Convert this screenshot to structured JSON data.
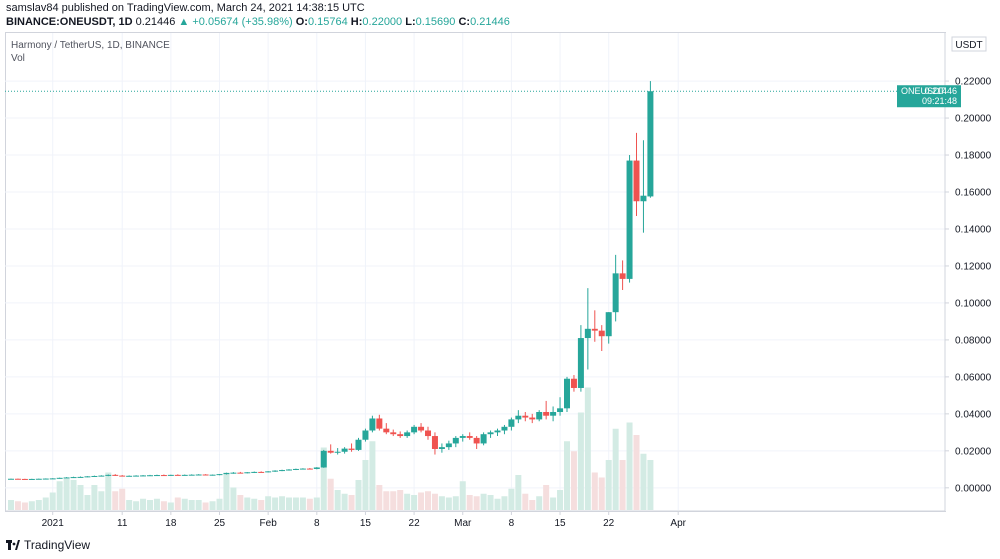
{
  "header": {
    "published_by": "samslav84 published on TradingView.com, March 24, 2021 14:38:15 UTC",
    "symbol": "BINANCE:ONEUSDT, 1D",
    "last": "0.21446",
    "change": "+0.05674 (+35.98%)",
    "open_label": "O:",
    "open": "0.15764",
    "high_label": "H:",
    "high": "0.22000",
    "low_label": "L:",
    "low": "0.15690",
    "close_label": "C:",
    "close": "0.21446"
  },
  "panel": {
    "title": "Harmony / TetherUS, 1D, BINANCE",
    "volume_label": "Vol"
  },
  "price_axis": {
    "currency": "USDT"
  },
  "last_price_tag": {
    "symbol": "ONEUSDT",
    "price": "0.21446",
    "countdown": "09:21:48"
  },
  "footer": {
    "brand": "TradingView"
  },
  "colors": {
    "up": "#26a69a",
    "down": "#ef5350",
    "up_volume": "#d3ebe4",
    "down_volume": "#f5dede",
    "tag": "#26a69a",
    "grid": "#f0f3fa"
  },
  "chart_data": {
    "type": "candlestick",
    "title": "Harmony / TetherUS, 1D, BINANCE",
    "ylim": [
      -0.012,
      0.246
    ],
    "y_ticks": [
      "0.22000",
      "0.20000",
      "0.18000",
      "0.16000",
      "0.14000",
      "0.12000",
      "0.10000",
      "0.08000",
      "0.06000",
      "0.04000",
      "0.02000",
      "0.00000"
    ],
    "y_tick_values": [
      0.22,
      0.2,
      0.18,
      0.16,
      0.14,
      0.12,
      0.1,
      0.08,
      0.06,
      0.04,
      0.02,
      0.0
    ],
    "x_ticks": [
      {
        "label": "2021",
        "index": 6
      },
      {
        "label": "11",
        "index": 16
      },
      {
        "label": "18",
        "index": 23
      },
      {
        "label": "25",
        "index": 30
      },
      {
        "label": "Feb",
        "index": 37
      },
      {
        "label": "8",
        "index": 44
      },
      {
        "label": "15",
        "index": 51
      },
      {
        "label": "22",
        "index": 58
      },
      {
        "label": "Mar",
        "index": 65
      },
      {
        "label": "8",
        "index": 72
      },
      {
        "label": "15",
        "index": 79
      },
      {
        "label": "22",
        "index": 86
      },
      {
        "label": "Apr",
        "index": 96
      }
    ],
    "first_index": 0,
    "candles": [
      [
        0.0048,
        0.005,
        0.0046,
        0.0049,
        0.8
      ],
      [
        0.0049,
        0.005,
        0.0047,
        0.0048,
        0.7
      ],
      [
        0.0048,
        0.0049,
        0.0046,
        0.0047,
        0.6
      ],
      [
        0.0047,
        0.0049,
        0.0045,
        0.0048,
        0.7
      ],
      [
        0.0048,
        0.005,
        0.0046,
        0.0049,
        0.8
      ],
      [
        0.0049,
        0.0051,
        0.0047,
        0.005,
        1.0
      ],
      [
        0.005,
        0.0052,
        0.0048,
        0.0051,
        1.4
      ],
      [
        0.0051,
        0.0055,
        0.0049,
        0.0054,
        2.3
      ],
      [
        0.0054,
        0.0058,
        0.0052,
        0.0056,
        2.5
      ],
      [
        0.0056,
        0.006,
        0.0053,
        0.0058,
        2.4
      ],
      [
        0.0058,
        0.0061,
        0.0055,
        0.0059,
        2.0
      ],
      [
        0.0059,
        0.0063,
        0.0057,
        0.0062,
        1.2
      ],
      [
        0.0062,
        0.0066,
        0.0059,
        0.0064,
        2.0
      ],
      [
        0.0064,
        0.0068,
        0.0061,
        0.0066,
        1.5
      ],
      [
        0.0066,
        0.0072,
        0.0063,
        0.007,
        3.0
      ],
      [
        0.007,
        0.0074,
        0.0064,
        0.0066,
        1.5
      ],
      [
        0.0066,
        0.0069,
        0.0062,
        0.0064,
        1.7
      ],
      [
        0.0064,
        0.0067,
        0.0061,
        0.0065,
        0.8
      ],
      [
        0.0065,
        0.0068,
        0.0062,
        0.0066,
        0.7
      ],
      [
        0.0066,
        0.0069,
        0.0063,
        0.0067,
        0.9
      ],
      [
        0.0067,
        0.007,
        0.0064,
        0.0068,
        0.8
      ],
      [
        0.0068,
        0.0071,
        0.0065,
        0.0069,
        0.9
      ],
      [
        0.0069,
        0.0072,
        0.0066,
        0.0068,
        0.7
      ],
      [
        0.0068,
        0.0071,
        0.0065,
        0.007,
        0.6
      ],
      [
        0.007,
        0.0073,
        0.0067,
        0.0069,
        1.0
      ],
      [
        0.0069,
        0.0072,
        0.0066,
        0.007,
        0.9
      ],
      [
        0.007,
        0.0073,
        0.0067,
        0.0071,
        0.8
      ],
      [
        0.0071,
        0.0074,
        0.0068,
        0.0072,
        0.8
      ],
      [
        0.0072,
        0.0074,
        0.0068,
        0.0069,
        0.6
      ],
      [
        0.0069,
        0.0072,
        0.0066,
        0.0071,
        0.7
      ],
      [
        0.0071,
        0.0075,
        0.0068,
        0.0074,
        0.9
      ],
      [
        0.0074,
        0.0082,
        0.0072,
        0.008,
        3.0
      ],
      [
        0.008,
        0.0085,
        0.0076,
        0.0082,
        1.8
      ],
      [
        0.0082,
        0.0086,
        0.0078,
        0.0081,
        1.2
      ],
      [
        0.0081,
        0.0085,
        0.0078,
        0.0084,
        1.0
      ],
      [
        0.0084,
        0.0088,
        0.008,
        0.0086,
        0.9
      ],
      [
        0.0086,
        0.0089,
        0.0082,
        0.0085,
        0.8
      ],
      [
        0.0085,
        0.009,
        0.0083,
        0.0089,
        1.1
      ],
      [
        0.0089,
        0.0095,
        0.0086,
        0.0093,
        1.0
      ],
      [
        0.0093,
        0.0098,
        0.009,
        0.0096,
        1.1
      ],
      [
        0.0096,
        0.0101,
        0.0093,
        0.0099,
        1.0
      ],
      [
        0.0099,
        0.0104,
        0.0096,
        0.0102,
        1.0
      ],
      [
        0.0102,
        0.0106,
        0.0099,
        0.0104,
        1.0
      ],
      [
        0.0104,
        0.0107,
        0.0099,
        0.0102,
        0.9
      ],
      [
        0.0102,
        0.0112,
        0.01,
        0.011,
        1.0
      ],
      [
        0.011,
        0.0205,
        0.0108,
        0.02,
        5.0
      ],
      [
        0.02,
        0.0235,
        0.0185,
        0.019,
        2.5
      ],
      [
        0.019,
        0.0215,
        0.018,
        0.0195,
        1.6
      ],
      [
        0.0195,
        0.022,
        0.0185,
        0.0212,
        1.3
      ],
      [
        0.0212,
        0.024,
        0.0195,
        0.0205,
        1.2
      ],
      [
        0.0205,
        0.027,
        0.02,
        0.026,
        2.4
      ],
      [
        0.026,
        0.032,
        0.025,
        0.031,
        4.0
      ],
      [
        0.031,
        0.039,
        0.03,
        0.0375,
        5.5
      ],
      [
        0.0375,
        0.0395,
        0.031,
        0.032,
        2.0
      ],
      [
        0.032,
        0.035,
        0.029,
        0.03,
        1.5
      ],
      [
        0.03,
        0.0315,
        0.028,
        0.029,
        1.5
      ],
      [
        0.029,
        0.0305,
        0.027,
        0.028,
        1.6
      ],
      [
        0.028,
        0.031,
        0.027,
        0.03,
        1.3
      ],
      [
        0.03,
        0.034,
        0.029,
        0.033,
        1.2
      ],
      [
        0.033,
        0.035,
        0.03,
        0.031,
        1.4
      ],
      [
        0.031,
        0.033,
        0.026,
        0.028,
        1.5
      ],
      [
        0.028,
        0.03,
        0.018,
        0.021,
        1.3
      ],
      [
        0.021,
        0.024,
        0.019,
        0.022,
        1.1
      ],
      [
        0.022,
        0.0255,
        0.0205,
        0.024,
        1.0
      ],
      [
        0.024,
        0.028,
        0.022,
        0.027,
        1.1
      ],
      [
        0.027,
        0.029,
        0.025,
        0.028,
        2.3
      ],
      [
        0.028,
        0.03,
        0.026,
        0.027,
        1.2
      ],
      [
        0.027,
        0.028,
        0.021,
        0.024,
        1.1
      ],
      [
        0.024,
        0.03,
        0.023,
        0.029,
        1.3
      ],
      [
        0.029,
        0.031,
        0.027,
        0.03,
        1.2
      ],
      [
        0.03,
        0.032,
        0.028,
        0.031,
        0.9
      ],
      [
        0.031,
        0.034,
        0.029,
        0.033,
        1.1
      ],
      [
        0.033,
        0.038,
        0.031,
        0.037,
        1.7
      ],
      [
        0.037,
        0.042,
        0.035,
        0.039,
        2.8
      ],
      [
        0.039,
        0.041,
        0.036,
        0.038,
        1.3
      ],
      [
        0.038,
        0.04,
        0.035,
        0.037,
        0.8
      ],
      [
        0.037,
        0.042,
        0.036,
        0.041,
        1.1
      ],
      [
        0.041,
        0.047,
        0.037,
        0.039,
        2.0
      ],
      [
        0.039,
        0.044,
        0.036,
        0.041,
        1.0
      ],
      [
        0.041,
        0.049,
        0.039,
        0.043,
        1.6
      ],
      [
        0.043,
        0.06,
        0.041,
        0.059,
        5.5
      ],
      [
        0.059,
        0.061,
        0.052,
        0.054,
        4.7
      ],
      [
        0.054,
        0.088,
        0.052,
        0.081,
        7.8
      ],
      [
        0.081,
        0.108,
        0.064,
        0.086,
        9.8
      ],
      [
        0.086,
        0.096,
        0.079,
        0.085,
        3.0
      ],
      [
        0.085,
        0.088,
        0.074,
        0.082,
        2.6
      ],
      [
        0.082,
        0.095,
        0.078,
        0.095,
        4.0
      ],
      [
        0.095,
        0.126,
        0.09,
        0.116,
        6.5
      ],
      [
        0.116,
        0.123,
        0.107,
        0.113,
        4.0
      ],
      [
        0.113,
        0.18,
        0.111,
        0.177,
        7.0
      ],
      [
        0.177,
        0.192,
        0.147,
        0.155,
        6.0
      ],
      [
        0.155,
        0.188,
        0.138,
        0.158,
        4.5
      ],
      [
        0.1576,
        0.22,
        0.1569,
        0.2145,
        4.0
      ]
    ]
  }
}
